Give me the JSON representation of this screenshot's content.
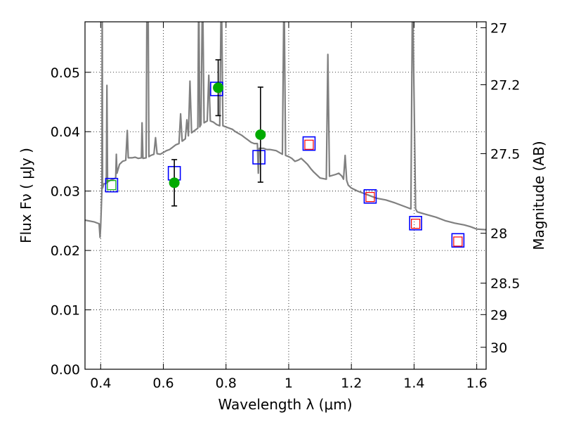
{
  "chart_data": {
    "type": "line",
    "xlabel": "Wavelength  λ (μm)",
    "ylabel_left": "Flux  Fν  ( μJy )",
    "ylabel_right": "Magnitude (AB)",
    "xlim": [
      0.35,
      1.63
    ],
    "ylim": [
      0.0,
      0.0585
    ],
    "grid": true,
    "x_ticks": [
      0.4,
      0.6,
      0.8,
      1.0,
      1.2,
      1.4,
      1.6
    ],
    "x_tick_labels": [
      "0.4",
      "0.6",
      "0.8",
      "1",
      "1.2",
      "1.4",
      "1.6"
    ],
    "y_ticks": [
      0.0,
      0.01,
      0.02,
      0.03,
      0.04,
      0.05
    ],
    "y_tick_labels": [
      "0.00",
      "0.01",
      "0.02",
      "0.03",
      "0.04",
      "0.05"
    ],
    "right_ticks": [
      {
        "label": "27",
        "flux": 0.0575
      },
      {
        "label": "27.2",
        "flux": 0.0479
      },
      {
        "label": "27.5",
        "flux": 0.0363
      },
      {
        "label": "28",
        "flux": 0.0229
      },
      {
        "label": "28.5",
        "flux": 0.0145
      },
      {
        "label": "29",
        "flux": 0.0092
      },
      {
        "label": "30",
        "flux": 0.0037
      }
    ],
    "series": [
      {
        "kind": "spectrum",
        "color": "#808080",
        "points": [
          [
            0.35,
            0.0251
          ],
          [
            0.38,
            0.0248
          ],
          [
            0.395,
            0.0245
          ],
          [
            0.398,
            0.0222
          ],
          [
            0.4,
            0.024
          ],
          [
            0.404,
            0.0303
          ],
          [
            0.405,
            0.065
          ],
          [
            0.406,
            0.0305
          ],
          [
            0.41,
            0.0312
          ],
          [
            0.418,
            0.0313
          ],
          [
            0.42,
            0.0478
          ],
          [
            0.422,
            0.0315
          ],
          [
            0.43,
            0.0318
          ],
          [
            0.44,
            0.032
          ],
          [
            0.448,
            0.0322
          ],
          [
            0.45,
            0.0362
          ],
          [
            0.452,
            0.033
          ],
          [
            0.46,
            0.0345
          ],
          [
            0.47,
            0.035
          ],
          [
            0.48,
            0.0352
          ],
          [
            0.485,
            0.0402
          ],
          [
            0.488,
            0.0356
          ],
          [
            0.5,
            0.0356
          ],
          [
            0.51,
            0.0357
          ],
          [
            0.52,
            0.0355
          ],
          [
            0.53,
            0.0356
          ],
          [
            0.532,
            0.0415
          ],
          [
            0.535,
            0.0355
          ],
          [
            0.545,
            0.0356
          ],
          [
            0.548,
            0.065
          ],
          [
            0.551,
            0.065
          ],
          [
            0.554,
            0.0358
          ],
          [
            0.56,
            0.036
          ],
          [
            0.57,
            0.0362
          ],
          [
            0.575,
            0.039
          ],
          [
            0.58,
            0.0363
          ],
          [
            0.59,
            0.0362
          ],
          [
            0.6,
            0.0365
          ],
          [
            0.61,
            0.0368
          ],
          [
            0.62,
            0.037
          ],
          [
            0.63,
            0.0374
          ],
          [
            0.64,
            0.0378
          ],
          [
            0.65,
            0.038
          ],
          [
            0.655,
            0.043
          ],
          [
            0.66,
            0.0384
          ],
          [
            0.67,
            0.0388
          ],
          [
            0.675,
            0.042
          ],
          [
            0.68,
            0.0393
          ],
          [
            0.685,
            0.0485
          ],
          [
            0.69,
            0.0398
          ],
          [
            0.7,
            0.0402
          ],
          [
            0.71,
            0.0406
          ],
          [
            0.713,
            0.065
          ],
          [
            0.716,
            0.0408
          ],
          [
            0.72,
            0.0412
          ],
          [
            0.725,
            0.065
          ],
          [
            0.73,
            0.0415
          ],
          [
            0.74,
            0.0418
          ],
          [
            0.745,
            0.0495
          ],
          [
            0.75,
            0.0418
          ],
          [
            0.76,
            0.0416
          ],
          [
            0.77,
            0.0412
          ],
          [
            0.78,
            0.041
          ],
          [
            0.785,
            0.065
          ],
          [
            0.79,
            0.041
          ],
          [
            0.8,
            0.0408
          ],
          [
            0.81,
            0.0406
          ],
          [
            0.82,
            0.0404
          ],
          [
            0.83,
            0.04
          ],
          [
            0.84,
            0.0397
          ],
          [
            0.85,
            0.0394
          ],
          [
            0.86,
            0.039
          ],
          [
            0.87,
            0.0386
          ],
          [
            0.88,
            0.0382
          ],
          [
            0.89,
            0.038
          ],
          [
            0.9,
            0.038
          ],
          [
            0.903,
            0.033
          ],
          [
            0.906,
            0.0372
          ],
          [
            0.92,
            0.0372
          ],
          [
            0.93,
            0.037
          ],
          [
            0.94,
            0.037
          ],
          [
            0.96,
            0.0368
          ],
          [
            0.97,
            0.0365
          ],
          [
            0.98,
            0.0362
          ],
          [
            0.985,
            0.065
          ],
          [
            0.99,
            0.036
          ],
          [
            1.0,
            0.0358
          ],
          [
            1.01,
            0.0355
          ],
          [
            1.02,
            0.035
          ],
          [
            1.03,
            0.0352
          ],
          [
            1.04,
            0.0355
          ],
          [
            1.05,
            0.035
          ],
          [
            1.06,
            0.0345
          ],
          [
            1.07,
            0.0338
          ],
          [
            1.08,
            0.0332
          ],
          [
            1.1,
            0.0322
          ],
          [
            1.12,
            0.032
          ],
          [
            1.125,
            0.053
          ],
          [
            1.13,
            0.0325
          ],
          [
            1.15,
            0.0328
          ],
          [
            1.16,
            0.033
          ],
          [
            1.17,
            0.0325
          ],
          [
            1.175,
            0.032
          ],
          [
            1.18,
            0.036
          ],
          [
            1.185,
            0.0318
          ],
          [
            1.19,
            0.031
          ],
          [
            1.2,
            0.0305
          ],
          [
            1.22,
            0.03
          ],
          [
            1.25,
            0.0294
          ],
          [
            1.28,
            0.0288
          ],
          [
            1.31,
            0.0285
          ],
          [
            1.34,
            0.028
          ],
          [
            1.37,
            0.0274
          ],
          [
            1.39,
            0.027
          ],
          [
            1.395,
            0.065
          ],
          [
            1.405,
            0.027
          ],
          [
            1.41,
            0.0265
          ],
          [
            1.43,
            0.0262
          ],
          [
            1.47,
            0.0256
          ],
          [
            1.5,
            0.025
          ],
          [
            1.53,
            0.0246
          ],
          [
            1.56,
            0.0243
          ],
          [
            1.58,
            0.024
          ],
          [
            1.6,
            0.0236
          ],
          [
            1.63,
            0.0235
          ]
        ]
      },
      {
        "kind": "square-blue",
        "color": "#0000ff",
        "points": [
          [
            0.435,
            0.031
          ],
          [
            0.635,
            0.033
          ],
          [
            0.77,
            0.0472
          ],
          [
            0.905,
            0.0357
          ],
          [
            1.065,
            0.038
          ],
          [
            1.26,
            0.0291
          ],
          [
            1.405,
            0.0246
          ],
          [
            1.54,
            0.0217
          ]
        ]
      },
      {
        "kind": "square-red",
        "color": "#ff0000",
        "points": [
          [
            1.065,
            0.0378
          ],
          [
            1.26,
            0.029
          ],
          [
            1.405,
            0.0245
          ],
          [
            1.54,
            0.0215
          ]
        ]
      },
      {
        "kind": "square-green",
        "color": "#00aa00",
        "points": [
          [
            0.435,
            0.031
          ]
        ]
      },
      {
        "kind": "measurement",
        "color": "#00aa00",
        "points": [
          {
            "x": 0.635,
            "y": 0.0314,
            "lo": 0.0275,
            "hi": 0.0353
          },
          {
            "x": 0.775,
            "y": 0.0474,
            "lo": 0.0427,
            "hi": 0.0521
          },
          {
            "x": 0.91,
            "y": 0.0395,
            "lo": 0.0315,
            "hi": 0.0475
          }
        ]
      }
    ]
  }
}
